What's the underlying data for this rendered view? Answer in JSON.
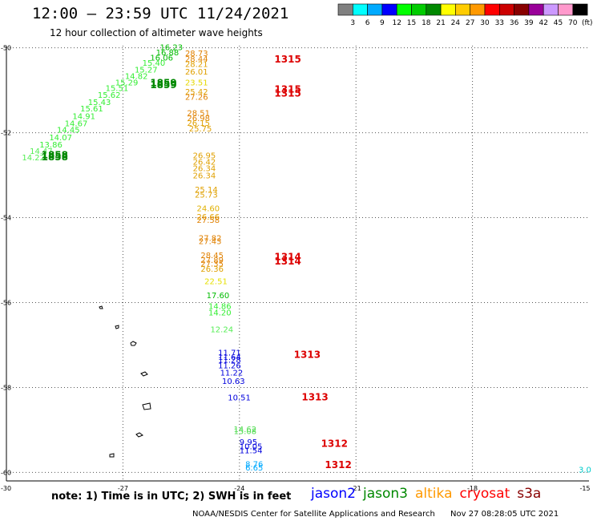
{
  "title": "12:00 – 23:59 UTC 11/24/2021",
  "subtitle": "12 hour collection of altimeter wave heights",
  "colorbar": {
    "colors": [
      "#808080",
      "#00ffff",
      "#00aaff",
      "#0000ff",
      "#00ff00",
      "#00cc00",
      "#008800",
      "#ffff00",
      "#ffcc00",
      "#ff9900",
      "#ff0000",
      "#cc0000",
      "#880000",
      "#990099",
      "#cc99ff",
      "#ff99cc",
      "#000000"
    ],
    "labels": [
      "3",
      "6",
      "9",
      "12",
      "15",
      "18",
      "21",
      "24",
      "27",
      "30",
      "33",
      "36",
      "39",
      "42",
      "45",
      "70"
    ],
    "unit": "(ft)"
  },
  "note": "note:  1) Time is in UTC;  2) SWH is in feet",
  "legend": [
    {
      "name": "jason2",
      "color": "#0000ff"
    },
    {
      "name": "jason3",
      "color": "#008800"
    },
    {
      "name": "altika",
      "color": "#ff9900"
    },
    {
      "name": "cryosat",
      "color": "#ff0000"
    },
    {
      "name": "s3a",
      "color": "#880000"
    }
  ],
  "footer": {
    "credit": "NOAA/NESDIS Center for Satellite Applications and Research",
    "timestamp": "Nov 27 08:28:05 UTC 2021"
  },
  "chart_data": {
    "type": "scatter",
    "xlim": [
      -30,
      -15
    ],
    "ylim": [
      -60.2,
      -49.95
    ],
    "xticks": [
      -27,
      -24,
      -21,
      -18,
      -15
    ],
    "yticks": [
      -50,
      -52,
      -54,
      -56,
      -58,
      -60
    ],
    "xtick_labels": [
      "-27",
      "-24",
      "-21",
      "-18",
      "-15"
    ],
    "ytick_labels": [
      "-50",
      "-52",
      "-54",
      "-56",
      "-58",
      "-60"
    ],
    "x_start_label": "-30",
    "grid": true,
    "series": [
      {
        "name": "cryosat",
        "color": "#dd0000",
        "time_labels": [
          {
            "lon": -23.1,
            "lat": -50.35,
            "text": "1315"
          },
          {
            "lon": -23.1,
            "lat": -51.05,
            "text": "1315"
          },
          {
            "lon": -23.1,
            "lat": -51.15,
            "text": "1315"
          },
          {
            "lon": -23.1,
            "lat": -55.0,
            "text": "1314"
          },
          {
            "lon": -23.1,
            "lat": -55.1,
            "text": "1314"
          },
          {
            "lon": -22.6,
            "lat": -57.3,
            "text": "1313"
          },
          {
            "lon": -22.4,
            "lat": -58.3,
            "text": "1313"
          },
          {
            "lon": -21.9,
            "lat": -59.4,
            "text": "1312"
          },
          {
            "lon": -21.8,
            "lat": -59.9,
            "text": "1312"
          }
        ]
      },
      {
        "name": "jason3",
        "color": "#008800",
        "time_labels": [
          {
            "lon": -26.3,
            "lat": -50.9,
            "text": "1859"
          },
          {
            "lon": -26.3,
            "lat": -50.95,
            "text": "1859"
          },
          {
            "lon": -29.1,
            "lat": -52.6,
            "text": "1858"
          },
          {
            "lon": -29.1,
            "lat": -52.65,
            "text": "1858"
          }
        ]
      }
    ],
    "points": [
      {
        "lon": -25.4,
        "lat": -50.2,
        "value": 28.73,
        "color": "#e08000"
      },
      {
        "lon": -25.4,
        "lat": -50.33,
        "value": 28.44,
        "color": "#e08000"
      },
      {
        "lon": -25.4,
        "lat": -50.45,
        "value": 28.21,
        "color": "#e0a000"
      },
      {
        "lon": -25.4,
        "lat": -50.63,
        "value": 26.01,
        "color": "#e0a000"
      },
      {
        "lon": -25.4,
        "lat": -50.88,
        "value": 23.51,
        "color": "#e6d800"
      },
      {
        "lon": -25.4,
        "lat": -51.1,
        "value": 25.42,
        "color": "#e0a000"
      },
      {
        "lon": -25.4,
        "lat": -51.22,
        "value": 27.26,
        "color": "#e08000"
      },
      {
        "lon": -25.35,
        "lat": -51.6,
        "value": 28.51,
        "color": "#e08000"
      },
      {
        "lon": -25.35,
        "lat": -51.72,
        "value": 26.98,
        "color": "#e08000"
      },
      {
        "lon": -25.35,
        "lat": -51.84,
        "value": 26.15,
        "color": "#e0a000"
      },
      {
        "lon": -25.3,
        "lat": -51.97,
        "value": 25.75,
        "color": "#e0a000"
      },
      {
        "lon": -25.2,
        "lat": -52.6,
        "value": 26.95,
        "color": "#e0a000"
      },
      {
        "lon": -25.2,
        "lat": -52.75,
        "value": 26.42,
        "color": "#e0a000"
      },
      {
        "lon": -25.2,
        "lat": -52.9,
        "value": 26.34,
        "color": "#e0a000"
      },
      {
        "lon": -25.2,
        "lat": -53.07,
        "value": 26.34,
        "color": "#e0a000"
      },
      {
        "lon": -25.15,
        "lat": -53.4,
        "value": 25.14,
        "color": "#e0a000"
      },
      {
        "lon": -25.15,
        "lat": -53.53,
        "value": 25.73,
        "color": "#e0a000"
      },
      {
        "lon": -25.1,
        "lat": -53.85,
        "value": 24.6,
        "color": "#e0b000"
      },
      {
        "lon": -25.1,
        "lat": -54.05,
        "value": 26.66,
        "color": "#e0a000"
      },
      {
        "lon": -25.1,
        "lat": -54.12,
        "value": 27.58,
        "color": "#e08000"
      },
      {
        "lon": -25.05,
        "lat": -54.55,
        "value": 27.82,
        "color": "#e08000"
      },
      {
        "lon": -25.05,
        "lat": -54.62,
        "value": 27.43,
        "color": "#e08000"
      },
      {
        "lon": -25.0,
        "lat": -54.95,
        "value": 28.45,
        "color": "#e08000"
      },
      {
        "lon": -25.0,
        "lat": -55.07,
        "value": 27.89,
        "color": "#e08000"
      },
      {
        "lon": -25.0,
        "lat": -55.15,
        "value": 27.35,
        "color": "#e08000"
      },
      {
        "lon": -25.0,
        "lat": -55.27,
        "value": 26.36,
        "color": "#e0a000"
      },
      {
        "lon": -24.9,
        "lat": -55.57,
        "value": 22.51,
        "color": "#e6e000"
      },
      {
        "lon": -24.85,
        "lat": -55.9,
        "value": 17.6,
        "color": "#00bb00"
      },
      {
        "lon": -24.8,
        "lat": -56.15,
        "value": 14.86,
        "color": "#33ee33"
      },
      {
        "lon": -24.8,
        "lat": -56.3,
        "value": 14.2,
        "color": "#33ee33"
      },
      {
        "lon": -24.75,
        "lat": -56.7,
        "value": 12.24,
        "color": "#55ee55"
      },
      {
        "lon": -24.55,
        "lat": -57.25,
        "value": 11.71,
        "color": "#0000dd"
      },
      {
        "lon": -24.55,
        "lat": -57.35,
        "value": 11.64,
        "color": "#0000dd"
      },
      {
        "lon": -24.55,
        "lat": -57.42,
        "value": 11.28,
        "color": "#0000dd"
      },
      {
        "lon": -24.55,
        "lat": -57.55,
        "value": 11.26,
        "color": "#0000dd"
      },
      {
        "lon": -24.5,
        "lat": -57.72,
        "value": 11.22,
        "color": "#0000dd"
      },
      {
        "lon": -24.45,
        "lat": -57.92,
        "value": 10.63,
        "color": "#0000dd"
      },
      {
        "lon": -24.3,
        "lat": -58.3,
        "value": 10.51,
        "color": "#0000dd"
      },
      {
        "lon": -24.15,
        "lat": -59.05,
        "value": 14.62,
        "color": "#55dd55"
      },
      {
        "lon": -24.15,
        "lat": -59.1,
        "value": 15.08,
        "color": "#55dd55"
      },
      {
        "lon": -24.0,
        "lat": -59.35,
        "value": 9.95,
        "color": "#0000dd"
      },
      {
        "lon": -24.0,
        "lat": -59.45,
        "value": 10.05,
        "color": "#0000dd"
      },
      {
        "lon": -24.0,
        "lat": -59.55,
        "value": 11.54,
        "color": "#0000dd"
      },
      {
        "lon": -23.85,
        "lat": -59.87,
        "value": 8.76,
        "color": "#00aaff"
      },
      {
        "lon": -23.85,
        "lat": -59.95,
        "value": 6.65,
        "color": "#00aaff"
      },
      {
        "lon": -15.3,
        "lat": -60.0,
        "value": 3.0,
        "color": "#00cccc"
      },
      {
        "lon": -26.05,
        "lat": -50.05,
        "value": 16.23,
        "color": "#00bb00"
      },
      {
        "lon": -26.15,
        "lat": -50.18,
        "value": 16.88,
        "color": "#00bb00"
      },
      {
        "lon": -26.3,
        "lat": -50.3,
        "value": 16.06,
        "color": "#00bb00"
      },
      {
        "lon": -26.5,
        "lat": -50.42,
        "value": 15.4,
        "color": "#33ee33"
      },
      {
        "lon": -26.7,
        "lat": -50.58,
        "value": 15.27,
        "color": "#33ee33"
      },
      {
        "lon": -26.95,
        "lat": -50.73,
        "value": 14.82,
        "color": "#33ee33"
      },
      {
        "lon": -27.2,
        "lat": -50.88,
        "value": 15.29,
        "color": "#33ee33"
      },
      {
        "lon": -27.45,
        "lat": -51.02,
        "value": 15.51,
        "color": "#33ee33"
      },
      {
        "lon": -27.65,
        "lat": -51.18,
        "value": 15.62,
        "color": "#33ee33"
      },
      {
        "lon": -27.9,
        "lat": -51.35,
        "value": 15.43,
        "color": "#33ee33"
      },
      {
        "lon": -28.1,
        "lat": -51.5,
        "value": 15.61,
        "color": "#33ee33"
      },
      {
        "lon": -28.3,
        "lat": -51.68,
        "value": 14.91,
        "color": "#33ee33"
      },
      {
        "lon": -28.5,
        "lat": -51.85,
        "value": 14.67,
        "color": "#33ee33"
      },
      {
        "lon": -28.7,
        "lat": -52.0,
        "value": 14.45,
        "color": "#33ee33"
      },
      {
        "lon": -28.9,
        "lat": -52.18,
        "value": 14.07,
        "color": "#33ee33"
      },
      {
        "lon": -29.15,
        "lat": -52.35,
        "value": 13.86,
        "color": "#33ee33"
      },
      {
        "lon": -29.4,
        "lat": -52.5,
        "value": 14.47,
        "color": "#55ee55"
      },
      {
        "lon": -29.6,
        "lat": -52.65,
        "value": 14.22,
        "color": "#55ee55"
      }
    ]
  }
}
